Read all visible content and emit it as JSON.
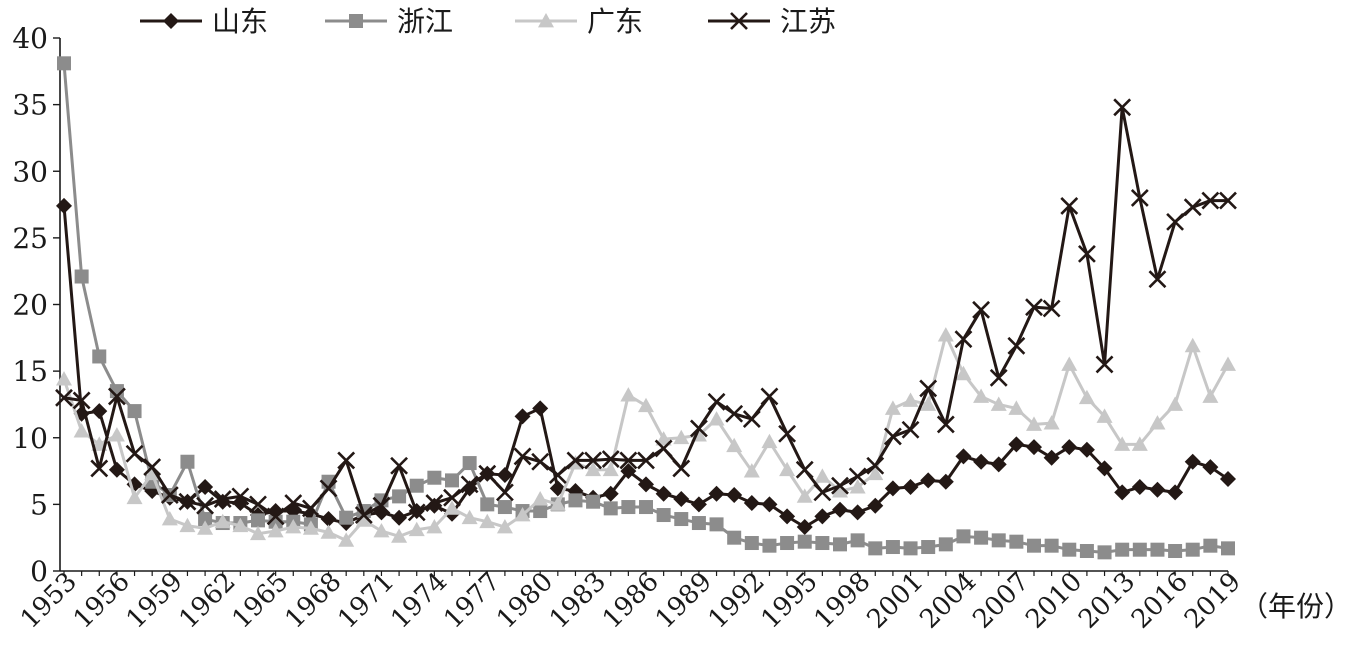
{
  "chart_data": {
    "type": "line",
    "x_unit_label": "（年份）",
    "x": [
      1953,
      1954,
      1955,
      1956,
      1957,
      1958,
      1959,
      1960,
      1961,
      1962,
      1963,
      1964,
      1965,
      1966,
      1967,
      1968,
      1969,
      1970,
      1971,
      1972,
      1973,
      1974,
      1975,
      1976,
      1977,
      1978,
      1979,
      1980,
      1981,
      1982,
      1983,
      1984,
      1985,
      1986,
      1987,
      1988,
      1989,
      1990,
      1991,
      1992,
      1993,
      1994,
      1995,
      1996,
      1997,
      1998,
      1999,
      2000,
      2001,
      2002,
      2003,
      2004,
      2005,
      2006,
      2007,
      2008,
      2009,
      2010,
      2011,
      2012,
      2013,
      2014,
      2015,
      2016,
      2017,
      2018,
      2019
    ],
    "x_ticks": [
      1953,
      1956,
      1959,
      1962,
      1965,
      1968,
      1971,
      1974,
      1977,
      1980,
      1983,
      1986,
      1989,
      1992,
      1995,
      1998,
      2001,
      2004,
      2007,
      2010,
      2013,
      2016,
      2019
    ],
    "ylim": [
      0,
      40
    ],
    "y_ticks": [
      0,
      5,
      10,
      15,
      20,
      25,
      30,
      35,
      40
    ],
    "legend_position": "top",
    "grid": false,
    "series": [
      {
        "name": "山东",
        "color": "#231815",
        "marker": "diamond",
        "values": [
          27.4,
          11.8,
          12.0,
          7.6,
          6.5,
          6.0,
          5.5,
          5.2,
          6.3,
          5.2,
          5.1,
          4.2,
          4.5,
          4.5,
          4.3,
          3.9,
          3.6,
          4.2,
          4.4,
          4.0,
          4.5,
          4.9,
          4.3,
          6.2,
          7.3,
          7.2,
          11.6,
          12.2,
          6.2,
          6.0,
          5.5,
          5.8,
          7.5,
          6.5,
          5.8,
          5.4,
          5.0,
          5.8,
          5.7,
          5.1,
          5.0,
          4.1,
          3.3,
          4.1,
          4.6,
          4.4,
          4.9,
          6.2,
          6.3,
          6.8,
          6.7,
          8.6,
          8.2,
          8.0,
          9.5,
          9.3,
          8.5,
          9.3,
          9.1,
          7.7,
          5.9,
          6.3,
          6.1,
          5.9,
          8.2,
          7.8,
          6.9
        ]
      },
      {
        "name": "浙江",
        "color": "#8c8c8c",
        "marker": "square",
        "values": [
          38.1,
          22.1,
          16.1,
          13.5,
          12.0,
          6.7,
          5.7,
          8.2,
          3.9,
          3.6,
          3.6,
          3.8,
          3.7,
          3.7,
          3.5,
          6.7,
          4.0,
          4.5,
          5.3,
          5.6,
          6.4,
          7.0,
          6.8,
          8.1,
          5.0,
          4.8,
          4.5,
          4.5,
          5.0,
          5.3,
          5.2,
          4.7,
          4.8,
          4.8,
          4.2,
          3.9,
          3.6,
          3.5,
          2.5,
          2.1,
          1.9,
          2.1,
          2.2,
          2.1,
          2.0,
          2.3,
          1.7,
          1.8,
          1.7,
          1.8,
          2.0,
          2.6,
          2.5,
          2.3,
          2.2,
          1.9,
          1.9,
          1.6,
          1.5,
          1.4,
          1.6,
          1.6,
          1.6,
          1.5,
          1.6,
          1.9,
          1.7
        ]
      },
      {
        "name": "广东",
        "color": "#c7c7c7",
        "marker": "triangle",
        "values": [
          14.4,
          10.5,
          9.5,
          10.2,
          5.5,
          7.3,
          3.9,
          3.4,
          3.2,
          3.7,
          3.4,
          2.8,
          3.0,
          3.3,
          3.2,
          2.9,
          2.3,
          3.8,
          3.0,
          2.6,
          3.1,
          3.3,
          4.7,
          4.0,
          3.7,
          3.3,
          4.2,
          5.4,
          5.0,
          8.1,
          7.6,
          7.6,
          13.2,
          12.4,
          9.9,
          10.0,
          10.2,
          11.4,
          9.4,
          7.5,
          9.7,
          7.6,
          5.6,
          7.1,
          6.0,
          6.3,
          7.3,
          12.2,
          12.8,
          12.5,
          17.7,
          14.8,
          13.1,
          12.5,
          12.2,
          11.0,
          11.1,
          15.5,
          13.0,
          11.6,
          9.5,
          9.5,
          11.1,
          12.5,
          16.9,
          13.1,
          15.5
        ]
      },
      {
        "name": "江苏",
        "color": "#231815",
        "marker": "x",
        "values": [
          13.0,
          12.8,
          7.7,
          13.1,
          8.8,
          7.8,
          5.7,
          5.2,
          4.9,
          5.4,
          5.6,
          5.0,
          4.1,
          5.1,
          4.7,
          6.2,
          8.3,
          4.2,
          4.9,
          7.9,
          4.4,
          5.1,
          5.5,
          6.5,
          7.3,
          5.9,
          8.6,
          8.2,
          7.2,
          8.3,
          8.3,
          8.4,
          8.3,
          8.3,
          9.2,
          7.7,
          10.7,
          12.7,
          11.8,
          11.4,
          13.1,
          10.3,
          7.6,
          5.9,
          6.4,
          7.1,
          7.9,
          10.1,
          10.6,
          13.7,
          11.0,
          17.4,
          19.6,
          14.5,
          16.9,
          19.8,
          19.7,
          27.4,
          23.8,
          15.5,
          34.8,
          28.0,
          21.9,
          26.2,
          27.3,
          27.8,
          27.8
        ]
      }
    ]
  }
}
